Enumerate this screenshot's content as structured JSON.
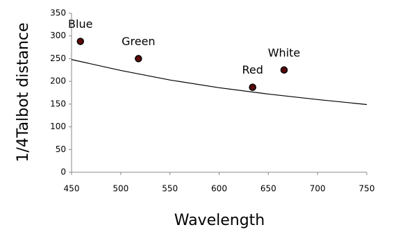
{
  "chart_data": {
    "type": "scatter",
    "x_label": "Wavelength",
    "y_label": "1/4Talbot distance",
    "point_labels": [
      "Blue",
      "Green",
      "Red",
      "White"
    ],
    "x": [
      459,
      518,
      634,
      666
    ],
    "values": [
      288,
      250,
      187,
      225
    ],
    "color": "#5c0a0a",
    "curve": {
      "x": [
        450,
        500,
        550,
        600,
        650,
        700,
        750
      ],
      "values": [
        248,
        224,
        203,
        186,
        172,
        160,
        149
      ],
      "color": "#000000"
    },
    "xlim": [
      450,
      750
    ],
    "xticks": [
      450,
      500,
      550,
      600,
      650,
      700,
      750
    ],
    "ylim": [
      0,
      350
    ],
    "yticks": [
      0,
      50,
      100,
      150,
      200,
      250,
      300,
      350
    ],
    "grid": false
  }
}
